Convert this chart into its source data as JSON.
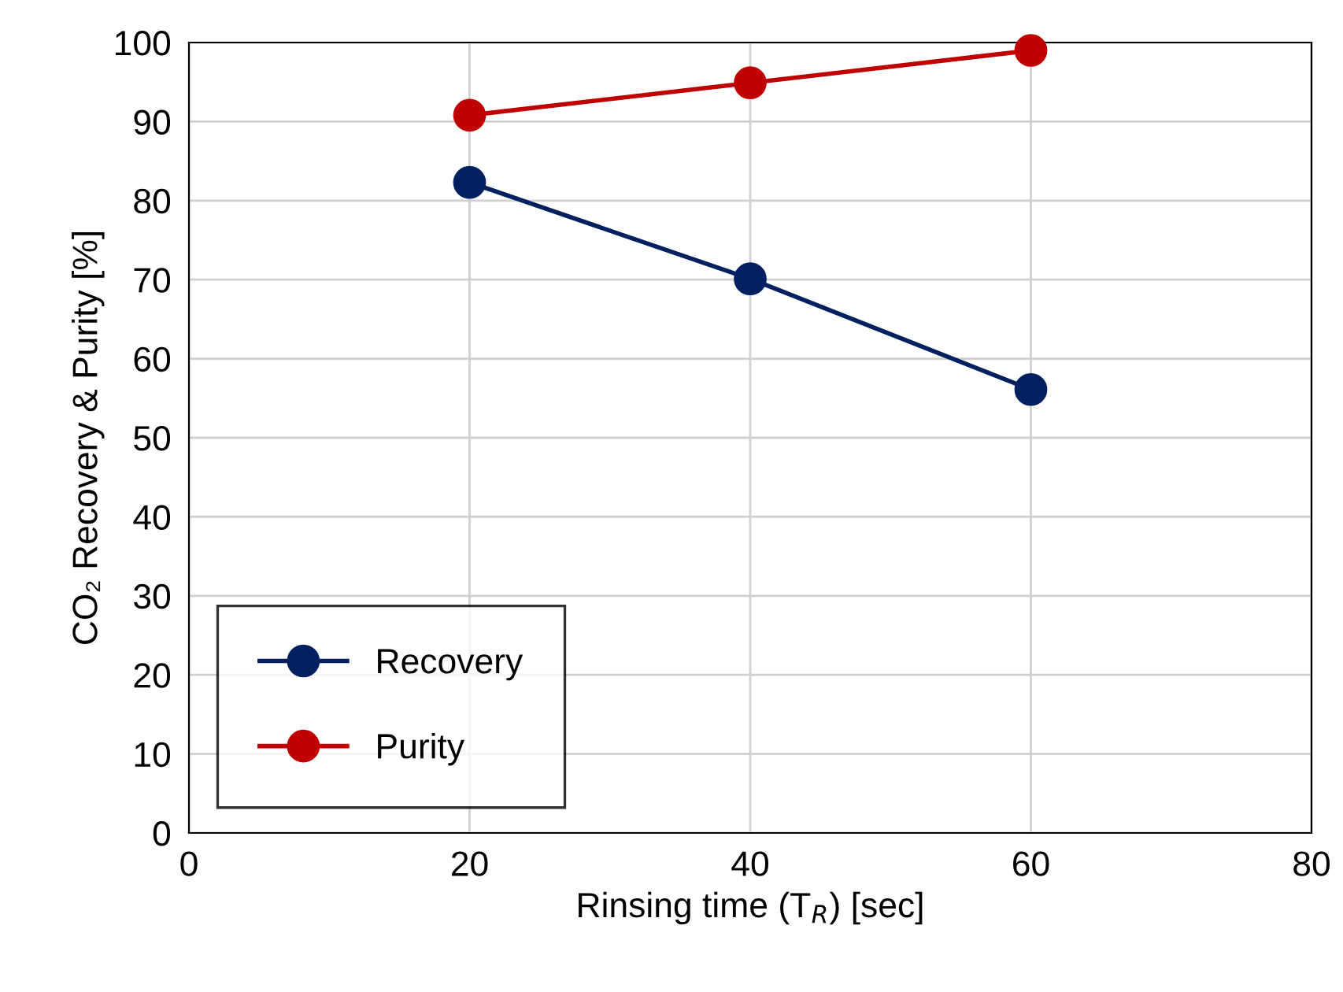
{
  "chart_data": {
    "type": "line",
    "xlabel": "Rinsing time (T$_{R}$) [sec]",
    "ylabel": "CO₂ Recovery & Purity [%]",
    "xlim": [
      0,
      80
    ],
    "xticks": [
      0,
      20,
      40,
      60,
      80
    ],
    "ylim": [
      0,
      100
    ],
    "yticks": [
      0,
      10,
      20,
      30,
      40,
      50,
      60,
      70,
      80,
      90,
      100
    ],
    "grid": true,
    "legend": "bottom left",
    "marker": "circle",
    "line_style": "solid",
    "series": [
      {
        "name": "Recovery",
        "color": "#002060",
        "x": [
          20,
          40,
          60
        ],
        "values": [
          82.3,
          70.1,
          56.1
        ]
      },
      {
        "name": "Purity",
        "color": "#c00000",
        "x": [
          20,
          40,
          60
        ],
        "values": [
          90.8,
          94.9,
          99.0
        ]
      }
    ]
  }
}
